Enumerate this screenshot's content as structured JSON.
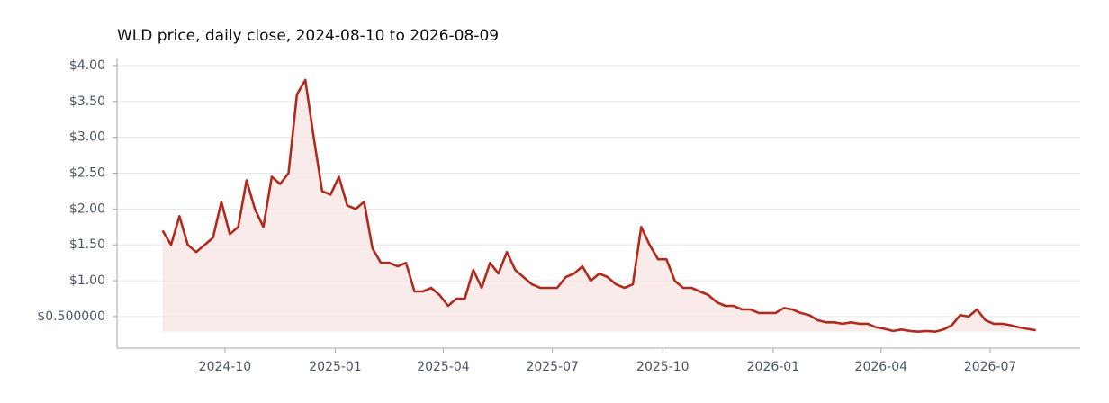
{
  "chart_data": {
    "type": "line",
    "title": "WLD price, daily close, 2024-08-10 to 2026-08-09",
    "x": [
      "2024-08-10",
      "2024-08-17",
      "2024-08-24",
      "2024-08-31",
      "2024-09-07",
      "2024-09-14",
      "2024-09-21",
      "2024-09-28",
      "2024-10-05",
      "2024-10-12",
      "2024-10-19",
      "2024-10-26",
      "2024-11-02",
      "2024-11-09",
      "2024-11-16",
      "2024-11-23",
      "2024-11-30",
      "2024-12-07",
      "2024-12-14",
      "2024-12-21",
      "2024-12-28",
      "2025-01-04",
      "2025-01-11",
      "2025-01-18",
      "2025-01-25",
      "2025-02-01",
      "2025-02-08",
      "2025-02-15",
      "2025-02-22",
      "2025-03-01",
      "2025-03-08",
      "2025-03-15",
      "2025-03-22",
      "2025-03-29",
      "2025-04-05",
      "2025-04-12",
      "2025-04-19",
      "2025-04-26",
      "2025-05-03",
      "2025-05-10",
      "2025-05-17",
      "2025-05-24",
      "2025-05-31",
      "2025-06-07",
      "2025-06-14",
      "2025-06-21",
      "2025-06-28",
      "2025-07-05",
      "2025-07-12",
      "2025-07-19",
      "2025-07-26",
      "2025-08-02",
      "2025-08-09",
      "2025-08-16",
      "2025-08-23",
      "2025-08-30",
      "2025-09-06",
      "2025-09-13",
      "2025-09-20",
      "2025-09-27",
      "2025-10-04",
      "2025-10-11",
      "2025-10-18",
      "2025-10-25",
      "2025-11-01",
      "2025-11-08",
      "2025-11-15",
      "2025-11-22",
      "2025-11-29",
      "2025-12-06",
      "2025-12-13",
      "2025-12-20",
      "2025-12-27",
      "2026-01-03",
      "2026-01-10",
      "2026-01-17",
      "2026-01-24",
      "2026-01-31",
      "2026-02-07",
      "2026-02-14",
      "2026-02-21",
      "2026-02-28",
      "2026-03-07",
      "2026-03-14",
      "2026-03-21",
      "2026-03-28",
      "2026-04-04",
      "2026-04-11",
      "2026-04-18",
      "2026-04-25",
      "2026-05-02",
      "2026-05-09",
      "2026-05-16",
      "2026-05-23",
      "2026-05-30",
      "2026-06-06",
      "2026-06-13",
      "2026-06-20",
      "2026-06-27",
      "2026-07-04",
      "2026-07-11",
      "2026-07-18",
      "2026-07-25",
      "2026-08-01",
      "2026-08-08"
    ],
    "series": [
      {
        "color": "#b22a1e",
        "fill": "#f7e6e4",
        "values": [
          1.7,
          1.5,
          1.9,
          1.5,
          1.4,
          1.5,
          1.6,
          2.1,
          1.65,
          1.75,
          2.4,
          2.0,
          1.75,
          2.45,
          2.35,
          2.5,
          3.6,
          3.8,
          3.0,
          2.25,
          2.2,
          2.45,
          2.05,
          2.0,
          2.1,
          1.45,
          1.25,
          1.25,
          1.2,
          1.25,
          0.85,
          0.85,
          0.9,
          0.8,
          0.65,
          0.75,
          0.75,
          1.15,
          0.9,
          1.25,
          1.1,
          1.4,
          1.15,
          1.05,
          0.95,
          0.9,
          0.9,
          0.9,
          1.05,
          1.1,
          1.2,
          1.0,
          1.1,
          1.05,
          0.95,
          0.9,
          0.95,
          1.75,
          1.5,
          1.3,
          1.3,
          1.0,
          0.9,
          0.9,
          0.85,
          0.8,
          0.7,
          0.65,
          0.65,
          0.6,
          0.6,
          0.55,
          0.55,
          0.55,
          0.62,
          0.6,
          0.55,
          0.52,
          0.45,
          0.42,
          0.42,
          0.4,
          0.42,
          0.4,
          0.4,
          0.35,
          0.33,
          0.3,
          0.32,
          0.3,
          0.29,
          0.3,
          0.29,
          0.32,
          0.38,
          0.52,
          0.5,
          0.6,
          0.45,
          0.4,
          0.4,
          0.38,
          0.35,
          0.33,
          0.31
        ]
      }
    ],
    "xlim": [
      "2024-07-03",
      "2026-09-14"
    ],
    "xticks": [
      "2024-10",
      "2025-01",
      "2025-04",
      "2025-07",
      "2025-10",
      "2026-01",
      "2026-04",
      "2026-07"
    ],
    "ylim": [
      0.06,
      4.1
    ],
    "yticks": [
      {
        "value": 0.5,
        "label": "$0.500000"
      },
      {
        "value": 1,
        "label": "$1.00"
      },
      {
        "value": 1.5,
        "label": "$1.50"
      },
      {
        "value": 2,
        "label": "$2.00"
      },
      {
        "value": 2.5,
        "label": "$2.50"
      },
      {
        "value": 3,
        "label": "$3.00"
      },
      {
        "value": 3.5,
        "label": "$3.50"
      },
      {
        "value": 4,
        "label": "$4.00"
      }
    ],
    "grid": true
  }
}
